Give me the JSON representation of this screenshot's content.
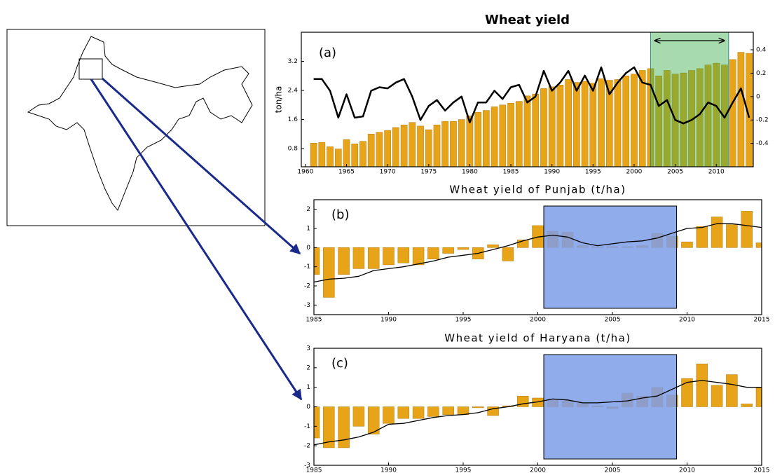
{
  "chart_data": [
    {
      "type": "bar",
      "title": "Wheat yield",
      "panel_label": "(a)",
      "y_label": "ton/ha",
      "x": [
        1961,
        1962,
        1963,
        1964,
        1965,
        1966,
        1967,
        1968,
        1969,
        1970,
        1971,
        1972,
        1973,
        1974,
        1975,
        1976,
        1977,
        1978,
        1979,
        1980,
        1981,
        1982,
        1983,
        1984,
        1985,
        1986,
        1987,
        1988,
        1989,
        1990,
        1991,
        1992,
        1993,
        1994,
        1995,
        1996,
        1997,
        1998,
        1999,
        2000,
        2001,
        2002,
        2003,
        2004,
        2005,
        2006,
        2007,
        2008,
        2009,
        2010,
        2011,
        2012,
        2013,
        2014
      ],
      "series": [
        {
          "type": "bar",
          "color": "#e8a418",
          "values": [
            0.95,
            0.97,
            0.85,
            0.79,
            1.05,
            0.93,
            1.0,
            1.2,
            1.25,
            1.3,
            1.38,
            1.45,
            1.52,
            1.42,
            1.32,
            1.45,
            1.55,
            1.55,
            1.6,
            1.7,
            1.8,
            1.85,
            1.95,
            2.0,
            2.05,
            2.1,
            2.25,
            2.3,
            2.45,
            2.5,
            2.55,
            2.7,
            2.62,
            2.65,
            2.6,
            2.72,
            2.68,
            2.7,
            2.8,
            2.85,
            2.95,
            3.0,
            2.8,
            2.95,
            2.85,
            2.88,
            2.95,
            3.0,
            3.1,
            3.15,
            3.1,
            3.25,
            3.45,
            3.42
          ]
        },
        {
          "type": "line",
          "color": "#000000",
          "axis": "y2",
          "values": [
            0.15,
            0.15,
            0.05,
            -0.18,
            0.02,
            -0.18,
            -0.17,
            0.05,
            0.08,
            0.07,
            0.12,
            0.15,
            0.0,
            -0.2,
            -0.08,
            -0.03,
            -0.12,
            -0.05,
            0.0,
            -0.22,
            -0.05,
            -0.05,
            0.05,
            -0.02,
            0.08,
            0.1,
            -0.05,
            0.0,
            0.22,
            0.05,
            0.12,
            0.22,
            0.05,
            0.18,
            0.05,
            0.25,
            0.02,
            0.12,
            0.2,
            0.25,
            0.12,
            0.1,
            -0.08,
            -0.03,
            -0.2,
            -0.23,
            -0.2,
            -0.15,
            -0.05,
            -0.08,
            -0.18,
            -0.05,
            0.07,
            -0.18
          ]
        }
      ],
      "xlim": [
        1959.5,
        2014.5
      ],
      "xticks": [
        1960,
        1965,
        1970,
        1975,
        1980,
        1985,
        1990,
        1995,
        2000,
        2005,
        2010
      ],
      "ylim": [
        0.3,
        4.0
      ],
      "yticks": [
        0.8,
        1.6,
        2.4,
        3.2
      ],
      "y2lim": [
        -0.6,
        0.55
      ],
      "y2ticks": [
        -0.4,
        -0.2,
        0,
        0.2,
        0.4
      ],
      "highlight": [
        2002,
        2011.5
      ],
      "highlight_color": "#3cb04a"
    },
    {
      "type": "bar",
      "title": "Wheat yield of Punjab (t/ha)",
      "panel_label": "(b)",
      "x": [
        1985,
        1986,
        1987,
        1988,
        1989,
        1990,
        1991,
        1992,
        1993,
        1994,
        1995,
        1996,
        1997,
        1998,
        1999,
        2000,
        2001,
        2002,
        2003,
        2004,
        2005,
        2006,
        2007,
        2008,
        2009,
        2010,
        2011,
        2012,
        2013,
        2014,
        2015
      ],
      "series": [
        {
          "type": "bar",
          "color": "#e8a418",
          "values": [
            -1.4,
            -2.6,
            -1.4,
            -1.1,
            -1.1,
            -0.9,
            -0.8,
            -0.9,
            -0.6,
            -0.3,
            -0.1,
            -0.6,
            0.15,
            -0.7,
            0.4,
            1.15,
            0.85,
            0.8,
            0.1,
            0.05,
            0.05,
            0.05,
            0.1,
            0.75,
            0.6,
            0.3,
            1.1,
            1.6,
            1.2,
            1.9,
            0.25
          ]
        },
        {
          "type": "line",
          "color": "#000000",
          "values": [
            -1.8,
            -1.65,
            -1.6,
            -1.5,
            -1.2,
            -1.1,
            -1.0,
            -0.85,
            -0.7,
            -0.5,
            -0.4,
            -0.3,
            -0.1,
            0.1,
            0.35,
            0.55,
            0.65,
            0.55,
            0.25,
            0.1,
            0.2,
            0.3,
            0.35,
            0.5,
            0.75,
            1.0,
            1.05,
            1.25,
            1.25,
            1.15,
            1.05
          ]
        }
      ],
      "xlim": [
        1985,
        2015
      ],
      "xticks": [
        1985,
        1990,
        1995,
        2000,
        2005,
        2010,
        2015
      ],
      "ylim": [
        -3.5,
        2.5
      ],
      "yticks": [
        -3,
        -2,
        -1,
        0,
        1,
        2
      ],
      "highlight": [
        2000.4,
        2009.3
      ],
      "highlight_color": "#7e9ee8"
    },
    {
      "type": "bar",
      "title": "Wheat yield of Haryana (t/ha)",
      "panel_label": "(c)",
      "x": [
        1985,
        1986,
        1987,
        1988,
        1989,
        1990,
        1991,
        1992,
        1993,
        1994,
        1995,
        1996,
        1997,
        1998,
        1999,
        2000,
        2001,
        2002,
        2003,
        2004,
        2005,
        2006,
        2007,
        2008,
        2009,
        2010,
        2011,
        2012,
        2013,
        2014,
        2015
      ],
      "series": [
        {
          "type": "bar",
          "color": "#e8a418",
          "values": [
            -1.6,
            -2.1,
            -2.1,
            -1.0,
            -1.4,
            -0.85,
            -0.6,
            -0.6,
            -0.5,
            -0.4,
            -0.4,
            -0.05,
            -0.45,
            0.05,
            0.55,
            0.45,
            0.4,
            0.3,
            0.2,
            0.05,
            -0.1,
            0.7,
            0.55,
            1.0,
            0.6,
            1.45,
            2.2,
            1.1,
            1.65,
            0.15,
            1.0
          ]
        },
        {
          "type": "line",
          "color": "#000000",
          "values": [
            -1.95,
            -1.8,
            -1.7,
            -1.55,
            -1.3,
            -0.9,
            -0.85,
            -0.7,
            -0.55,
            -0.45,
            -0.4,
            -0.3,
            -0.1,
            0.0,
            0.15,
            0.25,
            0.4,
            0.35,
            0.2,
            0.2,
            0.25,
            0.3,
            0.45,
            0.55,
            0.9,
            1.25,
            1.35,
            1.25,
            1.15,
            1.0,
            1.0
          ]
        }
      ],
      "xlim": [
        1985,
        2015
      ],
      "xticks": [
        1985,
        1990,
        1995,
        2000,
        2005,
        2010,
        2015
      ],
      "ylim": [
        -3,
        3
      ],
      "yticks": [
        -3,
        -2,
        -1,
        0,
        1,
        2,
        3
      ],
      "highlight": [
        2000.4,
        2009.3
      ],
      "highlight_color": "#7e9ee8"
    }
  ]
}
